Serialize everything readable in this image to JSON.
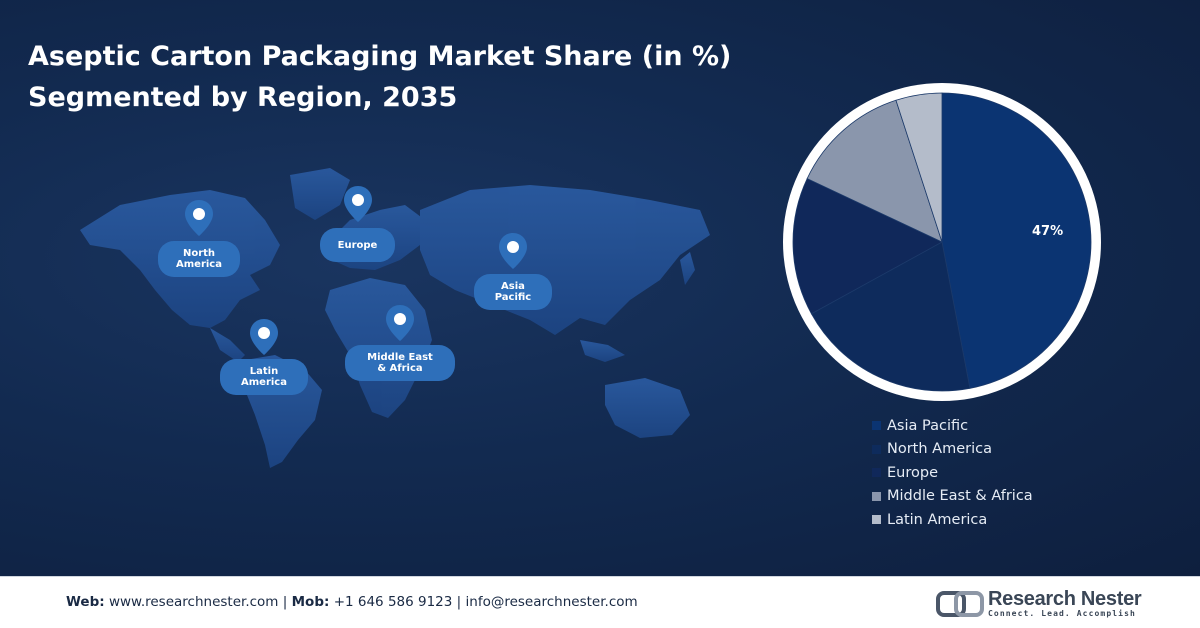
{
  "header": {
    "title_line1": "Aseptic Carton Packaging Market Share (in %)",
    "title_line2": "Segmented by Region, 2035"
  },
  "map": {
    "pins": [
      {
        "label_line1": "North",
        "label_line2": "America"
      },
      {
        "label_line1": "Europe",
        "label_line2": ""
      },
      {
        "label_line1": "Asia",
        "label_line2": "Pacific"
      },
      {
        "label_line1": "Latin",
        "label_line2": "America"
      },
      {
        "label_line1": "Middle East",
        "label_line2": "& Africa"
      }
    ]
  },
  "chart_data": {
    "type": "pie",
    "title": "Aseptic Carton Packaging Market Share (in %) Segmented by Region, 2035",
    "slices": [
      {
        "name": "Asia Pacific",
        "value": 47,
        "label": "47%",
        "color": "#0b3472"
      },
      {
        "name": "North America",
        "value": 20,
        "label": "",
        "color": "#0e2b5c"
      },
      {
        "name": "Europe",
        "value": 15,
        "label": "",
        "color": "#10285a"
      },
      {
        "name": "Middle East & Africa",
        "value": 13,
        "label": "",
        "color": "#8a96ac"
      },
      {
        "name": "Latin America",
        "value": 5,
        "label": "",
        "color": "#b4bcca"
      }
    ],
    "start_angle_deg": 0,
    "direction": "clockwise",
    "ring_color": "#ffffff",
    "legend_position": "bottom-right",
    "legend": [
      {
        "label": "Asia Pacific",
        "color": "#0b3472"
      },
      {
        "label": "North America",
        "color": "#0e2b5c"
      },
      {
        "label": "Europe",
        "color": "#10285a"
      },
      {
        "label": "Middle East & Africa",
        "color": "#8a96ac"
      },
      {
        "label": "Latin America",
        "color": "#b4bcca"
      }
    ]
  },
  "footer": {
    "web_label": "Web:",
    "web_value": "www.researchnester.com",
    "sep1": "|",
    "mob_label": "Mob:",
    "mob_value": "+1 646 586 9123",
    "sep2": "|",
    "email": "info@researchnester.com"
  },
  "brand": {
    "name": "Research Nester",
    "tagline": "Connect. Lead. Accomplish"
  },
  "colors": {
    "background": "#122a50",
    "pin": "#2e6fba",
    "map_land": "#24508f"
  }
}
